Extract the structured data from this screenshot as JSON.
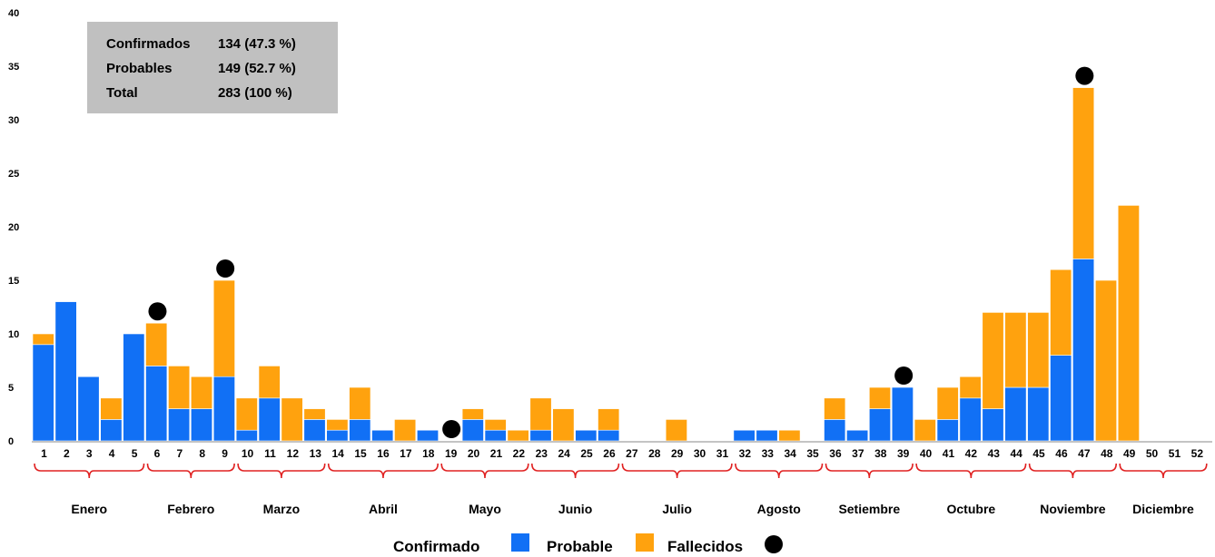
{
  "colors": {
    "confirmed": "#1170F5",
    "probable": "#FFA20E",
    "death": "#000000",
    "brace": "#E02020",
    "infobox": "#C0C0C0"
  },
  "info_box": {
    "rows": [
      {
        "label": "Confirmados",
        "value": "134 (47.3 %)"
      },
      {
        "label": "Probables",
        "value": "149 (52.7 %)"
      },
      {
        "label": "Total",
        "value": "283 (100 %)"
      }
    ]
  },
  "legend": {
    "confirmed": "Confirmado",
    "probable": "Probable",
    "deaths": "Fallecidos"
  },
  "months": [
    {
      "name": "Enero",
      "from": 1,
      "to": 5
    },
    {
      "name": "Febrero",
      "from": 6,
      "to": 9
    },
    {
      "name": "Marzo",
      "from": 10,
      "to": 13
    },
    {
      "name": "Abril",
      "from": 14,
      "to": 18
    },
    {
      "name": "Mayo",
      "from": 19,
      "to": 22
    },
    {
      "name": "Junio",
      "from": 23,
      "to": 26
    },
    {
      "name": "Julio",
      "from": 27,
      "to": 31
    },
    {
      "name": "Agosto",
      "from": 32,
      "to": 35
    },
    {
      "name": "Setiembre",
      "from": 36,
      "to": 39
    },
    {
      "name": "Octubre",
      "from": 40,
      "to": 44
    },
    {
      "name": "Noviembre",
      "from": 45,
      "to": 48
    },
    {
      "name": "Diciembre",
      "from": 49,
      "to": 52
    }
  ],
  "chart_data": {
    "type": "bar",
    "stacked": true,
    "categories": [
      "1",
      "2",
      "3",
      "4",
      "5",
      "6",
      "7",
      "8",
      "9",
      "10",
      "11",
      "12",
      "13",
      "14",
      "15",
      "16",
      "17",
      "18",
      "19",
      "20",
      "21",
      "22",
      "23",
      "24",
      "25",
      "26",
      "27",
      "28",
      "29",
      "30",
      "31",
      "32",
      "33",
      "34",
      "35",
      "36",
      "37",
      "38",
      "39",
      "40",
      "41",
      "42",
      "43",
      "44",
      "45",
      "46",
      "47",
      "48",
      "49",
      "50",
      "51",
      "52"
    ],
    "series": [
      {
        "name": "Confirmado",
        "values": [
          9,
          13,
          6,
          2,
          10,
          7,
          3,
          3,
          6,
          1,
          4,
          0,
          2,
          1,
          2,
          1,
          0,
          1,
          0,
          2,
          1,
          0,
          1,
          0,
          1,
          1,
          0,
          0,
          0,
          0,
          0,
          1,
          1,
          0,
          0,
          2,
          1,
          3,
          5,
          0,
          2,
          4,
          3,
          5,
          5,
          8,
          17,
          0,
          0,
          0,
          0,
          0
        ]
      },
      {
        "name": "Probable",
        "values": [
          1,
          0,
          0,
          2,
          0,
          4,
          4,
          3,
          9,
          3,
          3,
          4,
          1,
          1,
          3,
          0,
          2,
          0,
          0,
          1,
          1,
          1,
          3,
          3,
          0,
          2,
          0,
          0,
          2,
          0,
          0,
          0,
          0,
          1,
          0,
          2,
          0,
          2,
          0,
          2,
          3,
          2,
          9,
          7,
          7,
          8,
          16,
          15,
          22,
          0,
          0,
          0
        ]
      },
      {
        "name": "Fallecidos",
        "weeks": [
          6,
          9,
          19,
          39,
          47
        ]
      }
    ],
    "ylim": [
      0,
      40
    ],
    "yticks": [
      0,
      5,
      10,
      15,
      20,
      25,
      30,
      35,
      40
    ],
    "legend_position": "bottom-center",
    "grid": false
  }
}
